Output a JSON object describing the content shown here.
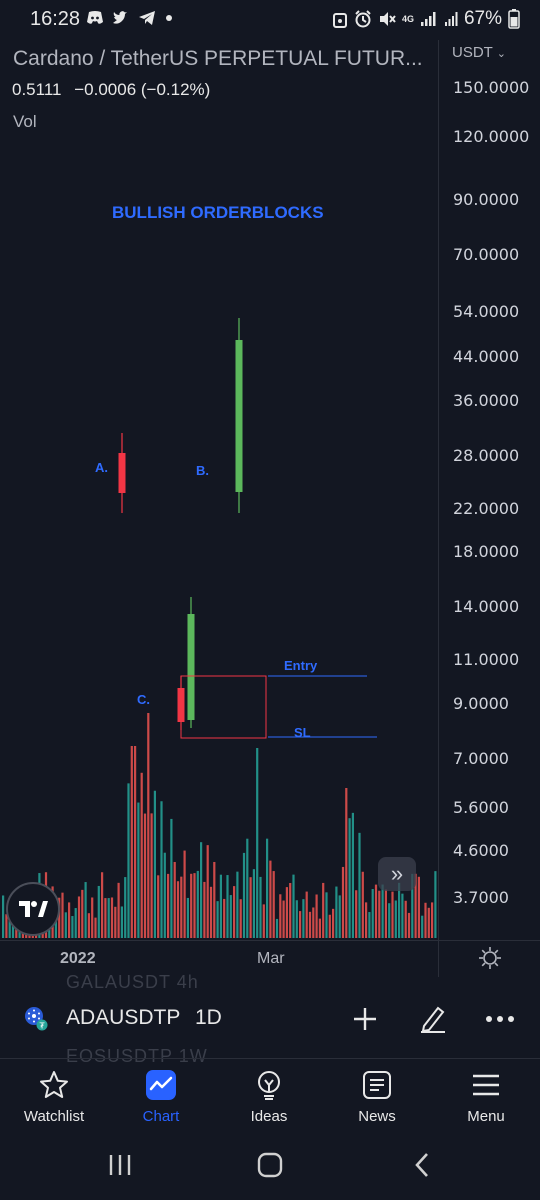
{
  "status_bar": {
    "time": "16:28",
    "network": "4G",
    "battery": "67%",
    "icons": [
      "discord-icon",
      "twitter-icon",
      "telegram-icon",
      "dot-icon",
      "alarm-icon",
      "mute-icon",
      "signal-icon",
      "battery-icon"
    ]
  },
  "chart": {
    "title": "Cardano / TetherUS PERPETUAL FUTUR...",
    "price": "0.5111",
    "change": "−0.0006 (−0.12%)",
    "vol_label": "Vol",
    "currency": "USDT",
    "y_ticks": [
      "150.0000",
      "120.0000",
      "90.0000",
      "70.0000",
      "54.0000",
      "44.0000",
      "36.0000",
      "28.0000",
      "22.0000",
      "18.0000",
      "14.0000",
      "11.0000",
      "9.0000",
      "7.0000",
      "5.6000",
      "4.6000",
      "3.7000"
    ],
    "x_ticks": [
      "2022",
      "Mar"
    ],
    "annotations": {
      "headline": "BULLISH ORDERBLOCKS",
      "a": "A.",
      "b": "B.",
      "c": "C.",
      "entry": "Entry",
      "sl": "SL"
    },
    "colors": {
      "up": "#26a69a",
      "down": "#ef5350",
      "candle_up": "#5cb85c",
      "candle_down": "#f23645",
      "annot": "#2f6bff",
      "box": "#f23645"
    }
  },
  "ghost_rows": {
    "row1": "GALAUSDT 4h",
    "row2": "EOSUSDTP 1W"
  },
  "symbol_bar": {
    "symbol": "ADAUSDTP",
    "timeframe": "1D"
  },
  "tabs": [
    {
      "label": "Watchlist",
      "icon": "star-icon"
    },
    {
      "label": "Chart",
      "icon": "chart-icon"
    },
    {
      "label": "Ideas",
      "icon": "lightbulb-icon"
    },
    {
      "label": "News",
      "icon": "news-icon"
    },
    {
      "label": "Menu",
      "icon": "menu-icon"
    }
  ]
}
